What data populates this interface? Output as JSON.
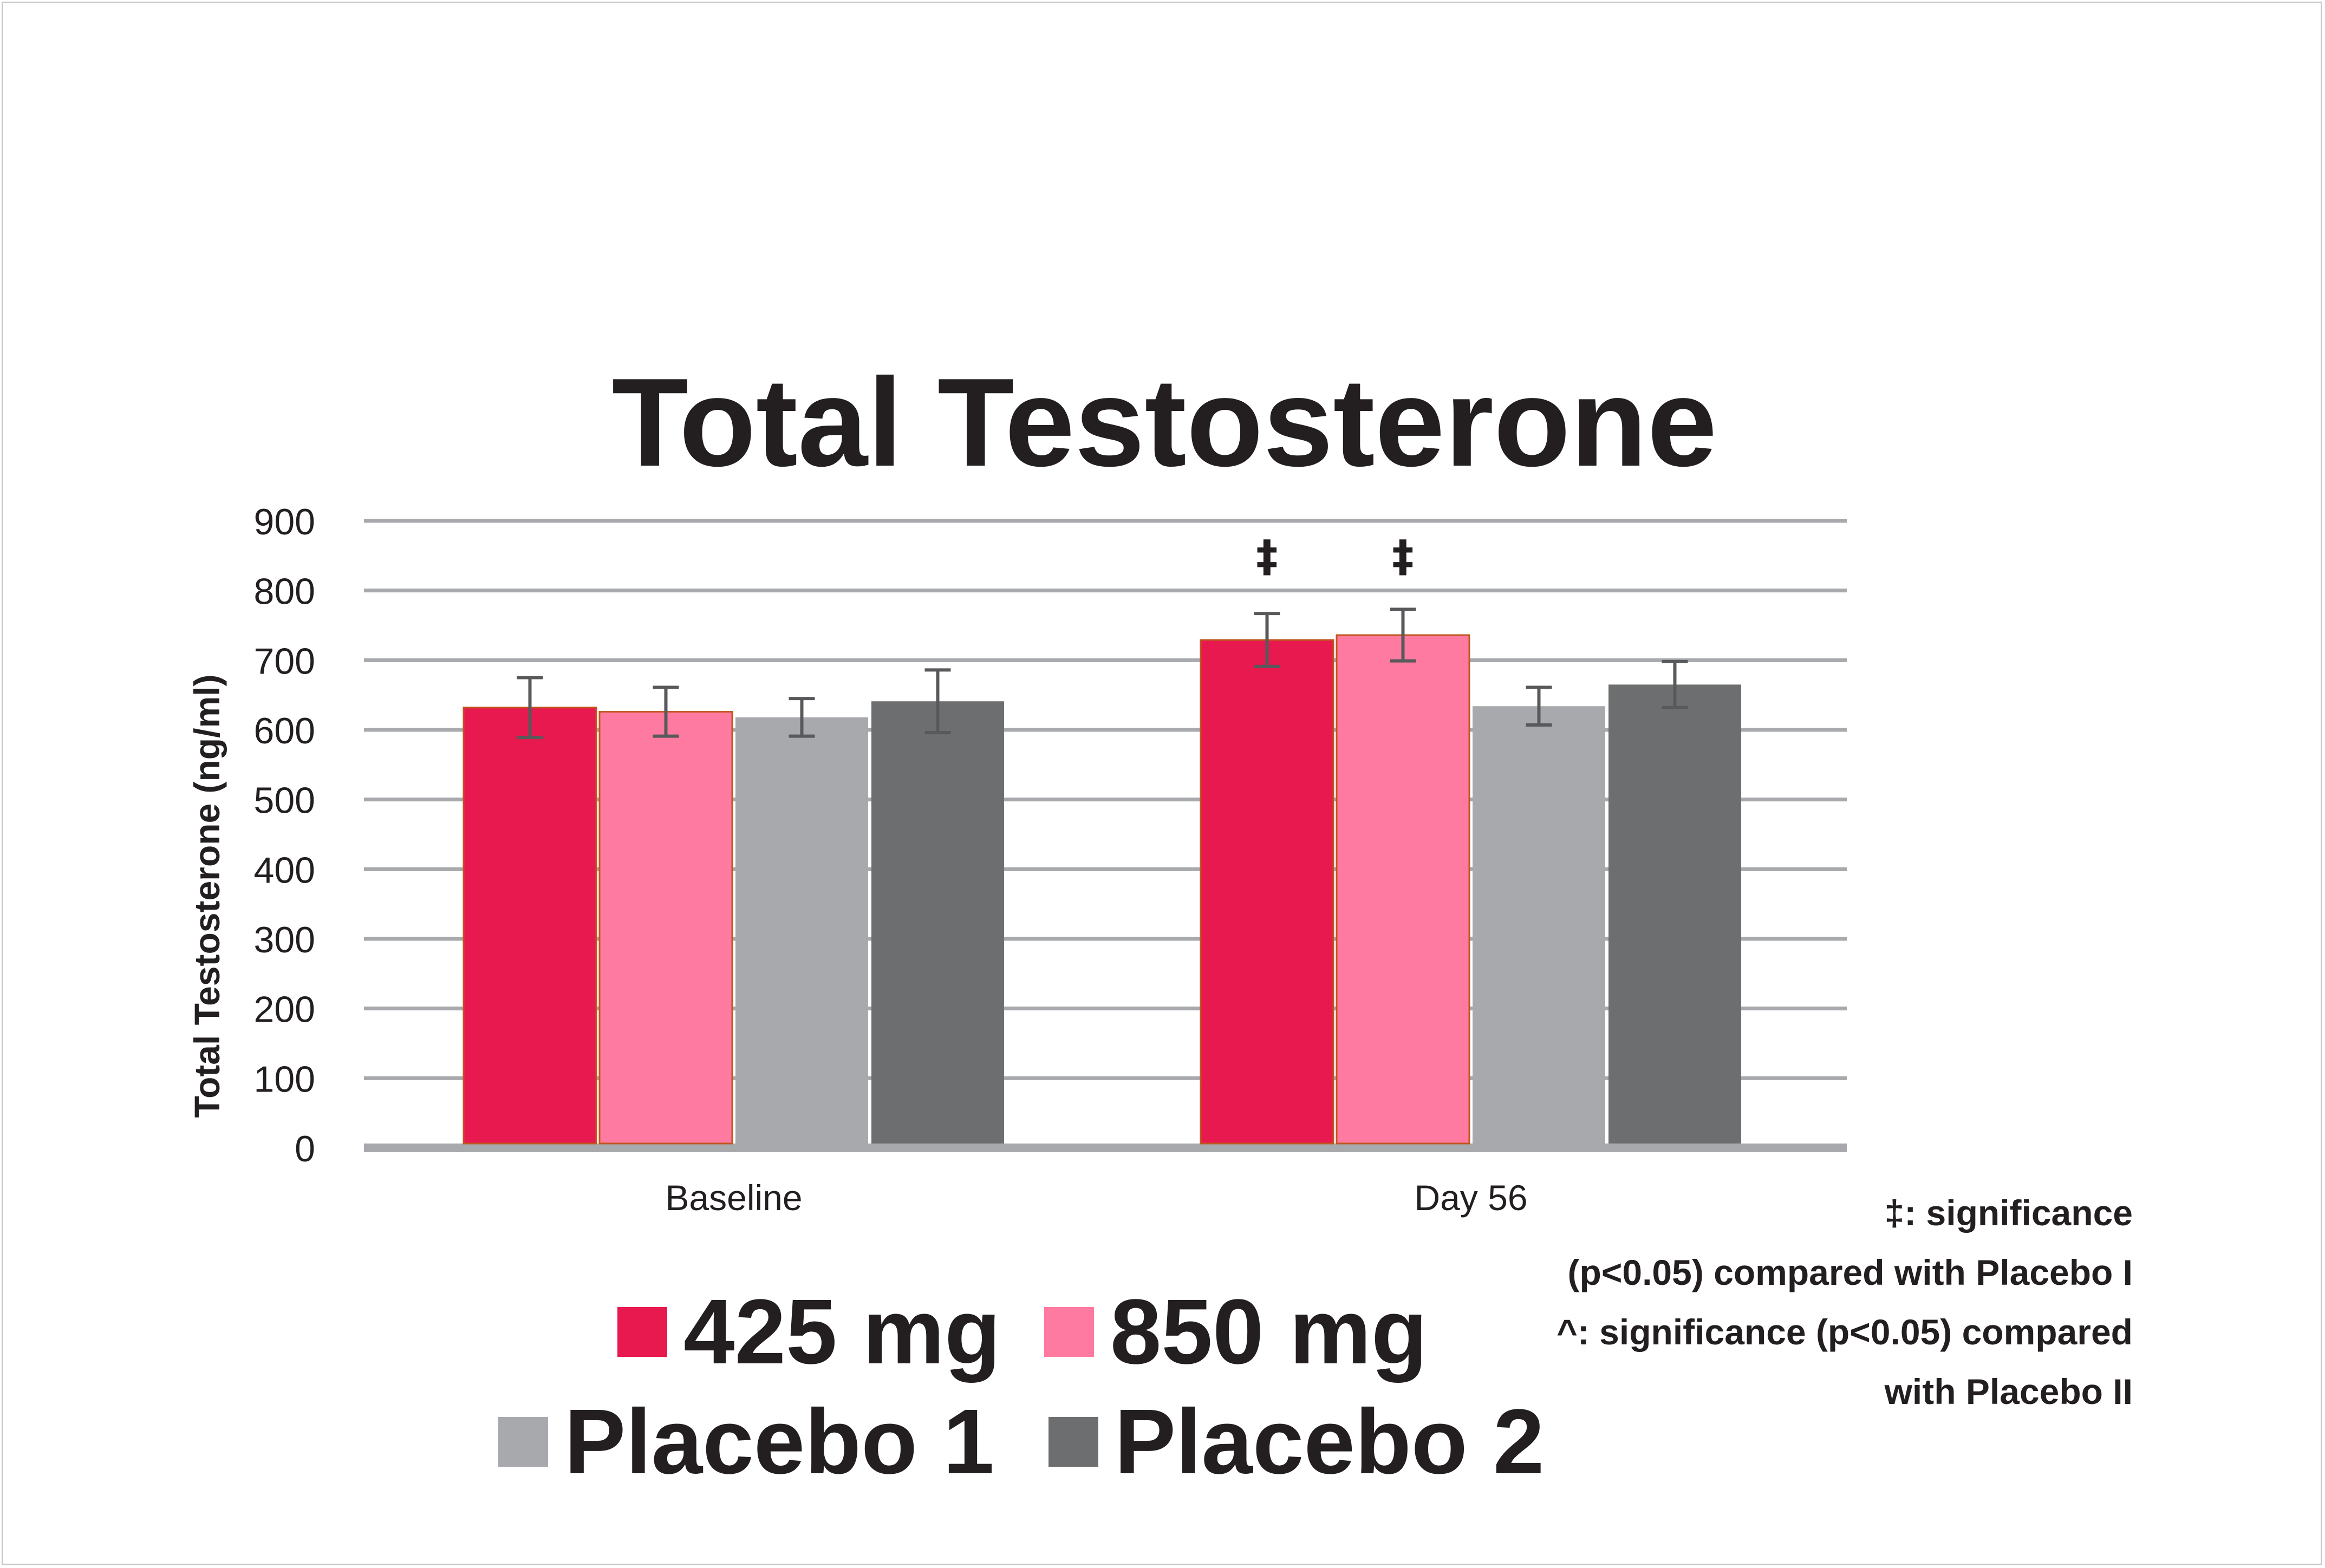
{
  "chart_data": {
    "type": "bar",
    "title": "Total Testosterone",
    "xlabel": "",
    "ylabel": "Total Testosterone (ng/ml)",
    "ylim": [
      0,
      900
    ],
    "yticks": [
      "0",
      "100",
      "200",
      "300",
      "400",
      "500",
      "600",
      "700",
      "800",
      "900"
    ],
    "grid": true,
    "categories": [
      "Baseline",
      "Day 56"
    ],
    "series": [
      {
        "name": "425 mg",
        "color": "#e8194f",
        "values": [
          632,
          729
        ],
        "error": [
          43,
          38
        ]
      },
      {
        "name": "850 mg",
        "color": "#ff7aa0",
        "values": [
          626,
          736
        ],
        "error": [
          35,
          37
        ]
      },
      {
        "name": "Placebo 1",
        "color": "#a7a9ac",
        "values": [
          618,
          634
        ],
        "error": [
          27,
          27
        ]
      },
      {
        "name": "Placebo 2",
        "color": "#6d6e70",
        "values": [
          641,
          665
        ],
        "error": [
          45,
          33
        ]
      }
    ],
    "annotations": [
      {
        "text": "‡",
        "category": "Day 56",
        "series": "425 mg"
      },
      {
        "text": "‡",
        "category": "Day 56",
        "series": "850 mg"
      }
    ],
    "legend_placement": "bottom-center",
    "notes": [
      "‡: significance",
      "(p<0.05) compared with Placebo I",
      "^: significance (p<0.05) compared",
      "with Placebo II"
    ]
  }
}
